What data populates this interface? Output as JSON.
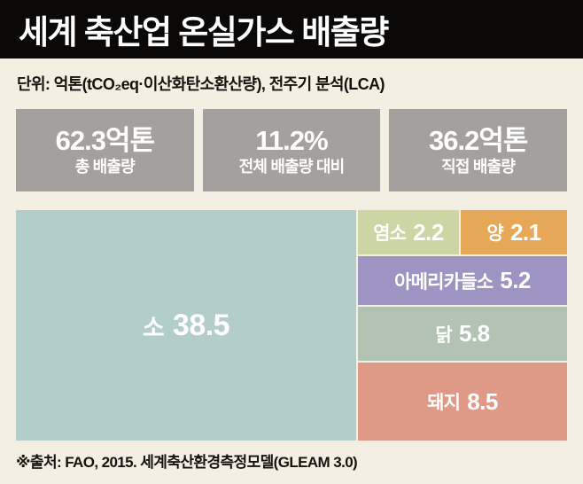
{
  "page": {
    "background": "#f3f0e3"
  },
  "header": {
    "title": "세계 축산업 온실가스 배출량",
    "bg": "#0b0907"
  },
  "subtitle": "단위: 억톤(tCO₂eq·이산화탄소환산량), 전주기 분석(LCA)",
  "stats_style": {
    "box_bg": "#a3a09d"
  },
  "stats": [
    {
      "value": "62.3억톤",
      "label": "총 배출량"
    },
    {
      "value": "11.2%",
      "label": "전체 배출량 대비"
    },
    {
      "value": "36.2억톤",
      "label": "직접 배출량"
    }
  ],
  "chart_data": {
    "type": "treemap",
    "title": "세계 축산업 온실가스 배출량",
    "unit": "억톤(tCO₂eq·이산화탄소환산량), 전주기 분석(LCA)",
    "total": 62.3,
    "items": [
      {
        "name": "소",
        "value": 38.5,
        "color": "#b3cdca"
      },
      {
        "name": "염소",
        "value": 2.2,
        "color": "#ccd5a4"
      },
      {
        "name": "양",
        "value": 2.1,
        "color": "#e6a757"
      },
      {
        "name": "아메리카들소",
        "value": 5.2,
        "color": "#9d94c3"
      },
      {
        "name": "닭",
        "value": 5.8,
        "color": "#b2c3b3"
      },
      {
        "name": "돼지",
        "value": 8.5,
        "color": "#de9a87"
      }
    ]
  },
  "footer": {
    "source": "※출처: FAO, 2015. 세계축산환경측정모델(GLEAM 3.0)"
  }
}
